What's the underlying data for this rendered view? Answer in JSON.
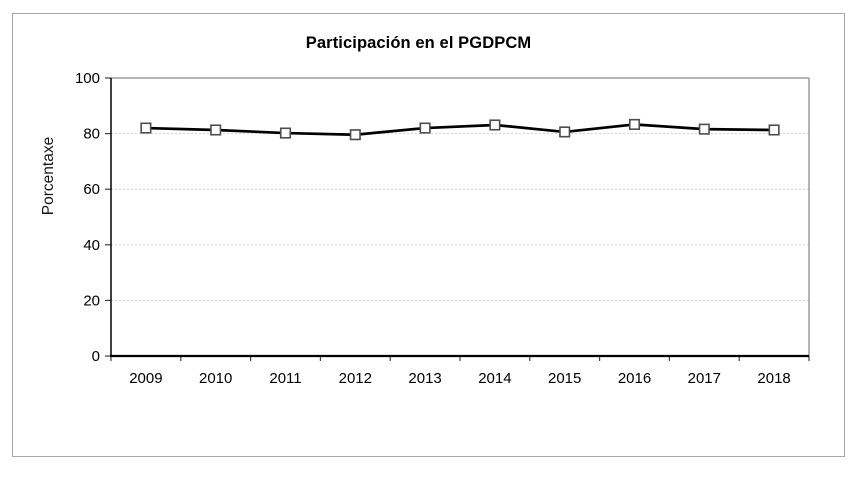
{
  "chart_data": {
    "type": "line",
    "title": "Participación en el PGDPCM",
    "ylabel": "Porcentaxe",
    "xlabel": "",
    "categories": [
      "2009",
      "2010",
      "2011",
      "2012",
      "2013",
      "2014",
      "2015",
      "2016",
      "2017",
      "2018"
    ],
    "series": [
      {
        "name": "Participación en el PGDPCM",
        "values": [
          82.0,
          81.3,
          80.2,
          79.6,
          82.0,
          83.1,
          80.6,
          83.3,
          81.6,
          81.3
        ]
      }
    ],
    "ylim": [
      0,
      100
    ],
    "yticks": [
      0,
      20,
      40,
      60,
      80,
      100
    ],
    "grid": true,
    "legend_position": "none",
    "line_color": "#000000",
    "marker_shape": "open-square",
    "marker_fill": "#ffffff",
    "marker_stroke": "#4d4d4d",
    "gridline_color": "#d2d2d2",
    "plot_border_color": "#8c8c8c",
    "axis_color": "#000000",
    "tick_color": "#404040",
    "figure_border_color": "#a6a6a6",
    "background_color": "#ffffff"
  }
}
